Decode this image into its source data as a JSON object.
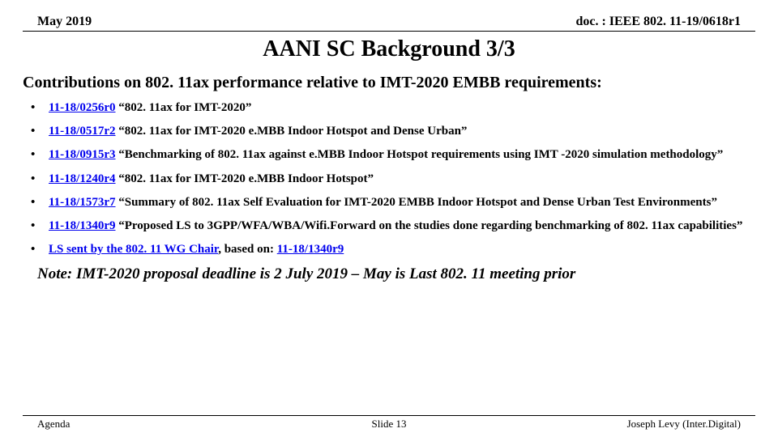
{
  "header": {
    "left": "May 2019",
    "right": "doc. : IEEE 802. 11-19/0618r1"
  },
  "title": "AANI SC Background 3/3",
  "subtitle": "Contributions on 802. 11ax performance relative to IMT-2020 EMBB requirements:",
  "bullets": {
    "b1": {
      "link": "11-18/0256r0",
      "rest": " “802. 11ax for IMT-2020”"
    },
    "b2": {
      "link": "11-18/0517r2",
      "rest": " “802. 11ax for IMT-2020 e.MBB Indoor Hotspot and Dense Urban”"
    },
    "b3": {
      "link": "11-18/0915r3",
      "rest": " “Benchmarking of 802. 11ax against e.MBB Indoor Hotspot requirements using IMT -2020 simulation methodology”"
    },
    "b4": {
      "link": "11-18/1240r4",
      "rest": " “802. 11ax for IMT-2020 e.MBB Indoor Hotspot”"
    },
    "b5": {
      "link": "11-18/1573r7",
      "rest": " “Summary of 802. 11ax Self Evaluation for IMT-2020 EMBB Indoor Hotspot and Dense Urban Test Environments”"
    },
    "b6": {
      "link": "11-18/1340r9",
      "rest": " “Proposed LS to 3GPP/WFA/WBA/Wifi.Forward on the studies done regarding benchmarking of 802. 11ax capabilities”"
    },
    "b7": {
      "link1": "LS sent by the 802. 11 WG Chair",
      "mid": ", based on: ",
      "link2": "11-18/1340r9"
    }
  },
  "note": "Note: IMT-2020 proposal deadline is 2 July 2019 – May is Last 802. 11 meeting prior",
  "footer": {
    "left": "Agenda",
    "center": "Slide 13",
    "right": "Joseph Levy (Inter.Digital)"
  },
  "colors": {
    "link": "#0000ee",
    "text": "#000000",
    "bg": "#ffffff"
  }
}
